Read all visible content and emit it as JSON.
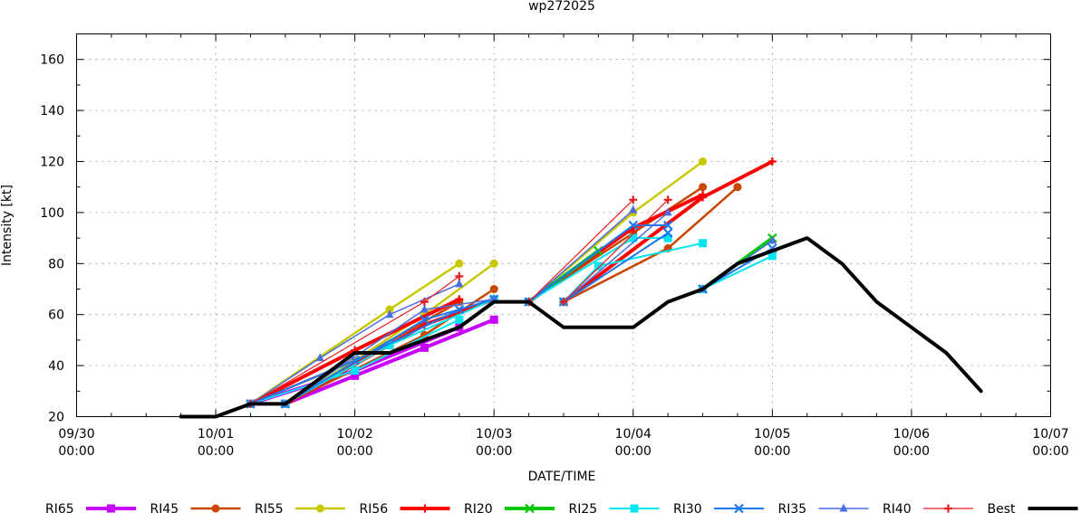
{
  "chart_data": {
    "type": "line",
    "title": "wp272025",
    "xlabel": "DATE/TIME",
    "ylabel": "Intensity [kt]",
    "xlim": [
      0,
      168
    ],
    "ylim": [
      20,
      170
    ],
    "x_unit": "hours since 09/30 00:00",
    "x_ticks": [
      {
        "x": 0,
        "date": "09/30",
        "time": "00:00"
      },
      {
        "x": 24,
        "date": "10/01",
        "time": "00:00"
      },
      {
        "x": 48,
        "date": "10/02",
        "time": "00:00"
      },
      {
        "x": 72,
        "date": "10/03",
        "time": "00:00"
      },
      {
        "x": 96,
        "date": "10/04",
        "time": "00:00"
      },
      {
        "x": 120,
        "date": "10/05",
        "time": "00:00"
      },
      {
        "x": 144,
        "date": "10/06",
        "time": "00:00"
      },
      {
        "x": 168,
        "date": "10/07",
        "time": "00:00"
      }
    ],
    "y_ticks": [
      20,
      40,
      60,
      80,
      100,
      120,
      140,
      160
    ],
    "legend_position": "bottom",
    "series": [
      {
        "name": "RI65",
        "color": "#c800ff",
        "marker": "square",
        "width": 4,
        "segments": [
          [
            [
              36,
              25
            ],
            [
              48,
              36
            ],
            [
              60,
              47
            ],
            [
              72,
              58
            ]
          ],
          [
            [
              30,
              25
            ],
            [
              48,
              38
            ],
            [
              66,
              55
            ]
          ]
        ]
      },
      {
        "name": "RI45",
        "color": "#c84600",
        "marker": "circle",
        "width": 2.5,
        "segments": [
          [
            [
              36,
              25
            ],
            [
              60,
              52
            ],
            [
              72,
              70
            ]
          ],
          [
            [
              30,
              25
            ],
            [
              48,
              42
            ],
            [
              66,
              65
            ]
          ],
          [
            [
              78,
              65
            ],
            [
              96,
              92
            ],
            [
              108,
              110
            ]
          ],
          [
            [
              84,
              65
            ],
            [
              102,
              86
            ],
            [
              114,
              110
            ]
          ]
        ]
      },
      {
        "name": "RI55",
        "color": "#c8c800",
        "marker": "circle",
        "width": 2.5,
        "segments": [
          [
            [
              30,
              25
            ],
            [
              54,
              62
            ],
            [
              66,
              80
            ]
          ],
          [
            [
              36,
              25
            ],
            [
              48,
              42
            ],
            [
              60,
              60
            ],
            [
              72,
              80
            ]
          ],
          [
            [
              78,
              65
            ],
            [
              96,
              100
            ],
            [
              108,
              120
            ]
          ]
        ]
      },
      {
        "name": "RI56",
        "color": "#ff0000",
        "marker": "plus",
        "width": 4,
        "segments": [
          [
            [
              30,
              25
            ],
            [
              48,
              46
            ],
            [
              66,
              66
            ]
          ],
          [
            [
              36,
              25
            ],
            [
              60,
              56
            ],
            [
              72,
              66
            ]
          ],
          [
            [
              84,
              65
            ],
            [
              108,
              106
            ],
            [
              120,
              120
            ]
          ],
          [
            [
              78,
              65
            ],
            [
              96,
              94
            ],
            [
              108,
              107
            ]
          ]
        ]
      },
      {
        "name": "RI20",
        "color": "#00c800",
        "marker": "cross",
        "width": 4,
        "segments": [
          [
            [
              108,
              70
            ],
            [
              120,
              90
            ]
          ],
          [
            [
              78,
              65
            ],
            [
              90,
              85
            ]
          ]
        ]
      },
      {
        "name": "RI25",
        "color": "#00e6f0",
        "marker": "square",
        "width": 2,
        "segments": [
          [
            [
              30,
              25
            ],
            [
              48,
              38
            ],
            [
              66,
              58
            ]
          ],
          [
            [
              36,
              25
            ],
            [
              54,
              48
            ],
            [
              72,
              66
            ]
          ],
          [
            [
              78,
              65
            ],
            [
              96,
              90
            ],
            [
              102,
              90
            ]
          ],
          [
            [
              84,
              65
            ],
            [
              90,
              79
            ],
            [
              108,
              88
            ]
          ],
          [
            [
              108,
              70
            ],
            [
              120,
              83
            ]
          ]
        ]
      },
      {
        "name": "RI30",
        "color": "#1e78f0",
        "marker": "cross",
        "width": 2,
        "segments": [
          [
            [
              30,
              25
            ],
            [
              48,
              42
            ],
            [
              66,
              62
            ]
          ],
          [
            [
              36,
              25
            ],
            [
              60,
              58
            ],
            [
              72,
              66
            ]
          ],
          [
            [
              78,
              65
            ],
            [
              96,
              95
            ],
            [
              102,
              95
            ]
          ],
          [
            [
              84,
              65
            ],
            [
              102,
              92
            ]
          ],
          [
            [
              108,
              70
            ],
            [
              120,
              86
            ]
          ]
        ]
      },
      {
        "name": "RI35",
        "color": "#4a6ee0",
        "marker": "triangle",
        "width": 1.5,
        "segments": [
          [
            [
              30,
              25
            ],
            [
              42,
              43
            ],
            [
              54,
              60
            ],
            [
              66,
              72
            ]
          ],
          [
            [
              36,
              25
            ],
            [
              60,
              62
            ],
            [
              72,
              66
            ]
          ],
          [
            [
              78,
              65
            ],
            [
              96,
              101
            ]
          ],
          [
            [
              84,
              65
            ],
            [
              102,
              100
            ]
          ],
          [
            [
              108,
              70
            ],
            [
              120,
              89
            ]
          ]
        ]
      },
      {
        "name": "RI40",
        "color": "#e61e1e",
        "marker": "plus",
        "width": 1.2,
        "segments": [
          [
            [
              30,
              25
            ],
            [
              60,
              65
            ],
            [
              66,
              75
            ]
          ],
          [
            [
              78,
              65
            ],
            [
              96,
              105
            ]
          ],
          [
            [
              84,
              65
            ],
            [
              102,
              105
            ]
          ]
        ]
      },
      {
        "name": "Best",
        "color": "#000000",
        "marker": "none",
        "width": 4,
        "segments": [
          [
            [
              18,
              20
            ],
            [
              24,
              20
            ],
            [
              30,
              25
            ],
            [
              36,
              25
            ],
            [
              42,
              35
            ],
            [
              48,
              45
            ],
            [
              54,
              45
            ],
            [
              60,
              50
            ],
            [
              66,
              55
            ],
            [
              72,
              65
            ],
            [
              78,
              65
            ],
            [
              84,
              55
            ],
            [
              90,
              55
            ],
            [
              96,
              55
            ],
            [
              102,
              65
            ],
            [
              108,
              70
            ],
            [
              114,
              80
            ],
            [
              120,
              85
            ],
            [
              126,
              90
            ],
            [
              132,
              80
            ],
            [
              138,
              65
            ],
            [
              144,
              55
            ],
            [
              150,
              45
            ],
            [
              156,
              30
            ]
          ]
        ]
      }
    ]
  }
}
